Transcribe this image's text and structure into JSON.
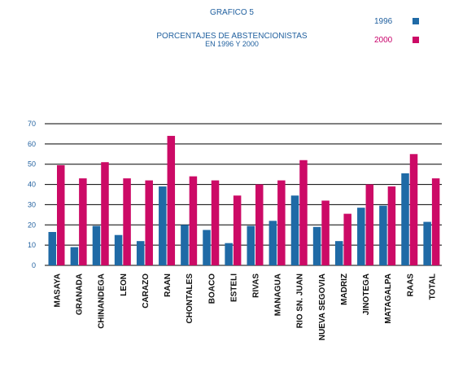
{
  "chart_data": {
    "type": "bar",
    "figure_label": "GRAFICO 5",
    "title_line1": "PORCENTAJES DE ABSTENCIONISTAS",
    "title_line2": "EN 1996  Y 2000",
    "xlabel": "",
    "ylabel": "",
    "ylim": [
      0,
      70
    ],
    "yticks": [
      0,
      10,
      20,
      30,
      40,
      50,
      60,
      70
    ],
    "grid": true,
    "legend_placement": "top-right",
    "categories": [
      "MASAYA",
      "GRANADA",
      "CHINANDEGA",
      "LEON",
      "CARAZO",
      "RAAN",
      "CHONTALES",
      "BOACO",
      "ESTELI",
      "RIVAS",
      "MANAGUA",
      "RIO SN. JUAN",
      "NUEVA SEGOVIA",
      "MADRIZ",
      "JINOTEGA",
      "MATAGALPA",
      "RAAS",
      "TOTAL"
    ],
    "series": [
      {
        "name": "1996",
        "color": "#1f6aa6",
        "values": [
          16.5,
          9,
          19.5,
          15,
          12,
          39,
          20,
          17.5,
          11,
          19.5,
          22,
          34.5,
          19,
          12,
          28.5,
          29.5,
          45.5,
          21.5
        ]
      },
      {
        "name": "2000",
        "color": "#cc0a66",
        "values": [
          49.5,
          43,
          51,
          43,
          42,
          64,
          44,
          42,
          34.5,
          40,
          42,
          52,
          32,
          25.5,
          40,
          39,
          55,
          43
        ]
      }
    ]
  }
}
